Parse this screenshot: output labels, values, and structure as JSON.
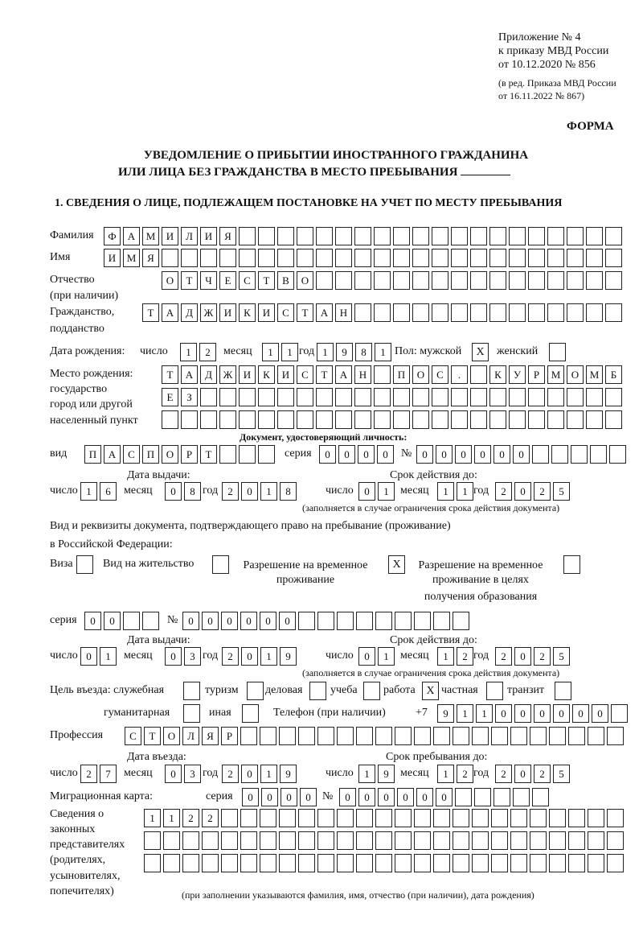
{
  "header": {
    "appendix": [
      "Приложение № 4",
      "к приказу МВД России",
      "от 10.12.2020 № 856"
    ],
    "revision": [
      "(в ред. Приказа МВД России",
      "от 16.11.2022 № 867)"
    ],
    "form_label": "ФОРМА",
    "title_line1": "УВЕДОМЛЕНИЕ О ПРИБЫТИИ ИНОСТРАННОГО ГРАЖДАНИНА",
    "title_line2": "ИЛИ ЛИЦА БЕЗ ГРАЖДАНСТВА В МЕСТО ПРЕБЫВАНИЯ",
    "section1": "1. СВЕДЕНИЯ О ЛИЦЕ, ПОДЛЕЖАЩЕМ ПОСТАНОВКЕ НА УЧЕТ ПО МЕСТУ ПРЕБЫВАНИЯ"
  },
  "person": {
    "surname_label": "Фамилия",
    "surname": "ФАМИЛИЯ",
    "name_label": "Имя",
    "name": "ИМЯ",
    "patronymic_label": "Отчество",
    "patronymic_note": "(при наличии)",
    "patronymic": "ОТЧЕСТВО",
    "citizenship_label": "Гражданство,",
    "citizenship_label2": "подданство",
    "citizenship": "ТАДЖИКИСТАН",
    "birth_label": "Дата рождения:",
    "day_label": "число",
    "month_label": "месяц",
    "year_label": "год",
    "birth_day": "12",
    "birth_month": "11",
    "birth_year": "1981",
    "sex_label": "Пол: мужской",
    "sex_female_label": "женский",
    "sex_male": "X",
    "sex_female": "",
    "birthplace_labels": [
      "Место рождения:",
      "государство",
      "город или другой",
      "населенный пункт"
    ],
    "birthplace": [
      "ТАДЖИКИСТАН ПОС. КУРМОМБ",
      "ЕЗ",
      ""
    ]
  },
  "id_document": {
    "heading": "Документ, удостоверяющий личность:",
    "kind_label": "вид",
    "kind": "ПАСПОРТ",
    "series_label": "серия",
    "series": "0000",
    "number_label": "№",
    "number": "000000",
    "issue_label": "Дата выдачи:",
    "issue_day": "16",
    "issue_month": "08",
    "issue_year": "2018",
    "valid_label": "Срок действия до:",
    "valid_day": "01",
    "valid_month": "11",
    "valid_year": "2025",
    "valid_note": "(заполняется в случае ограничения срока действия документа)"
  },
  "residence_document": {
    "heading1": "Вид и реквизиты документа, подтверждающего право на пребывание (проживание)",
    "heading2": "в Российской Федерации:",
    "visa_label": "Виза",
    "visa": "",
    "residence_permit_label": "Вид на жительство",
    "residence_permit": "",
    "temp_permit_label1": "Разрешение на временное",
    "temp_permit_label2": "проживание",
    "temp_permit": "X",
    "temp_edu_label1": "Разрешение на временное",
    "temp_edu_label2": "проживание в целях",
    "temp_edu_label3": "получения образования",
    "temp_edu": "",
    "series_label": "серия",
    "series": "00",
    "number_label": "№",
    "number": "000000",
    "issue_label": "Дата выдачи:",
    "issue_day": "01",
    "issue_month": "03",
    "issue_year": "2019",
    "valid_label": "Срок действия до:",
    "valid_day": "01",
    "valid_month": "12",
    "valid_year": "2025",
    "valid_note": "(заполняется в случае ограничения срока действия документа)"
  },
  "purpose": {
    "label": "Цель въезда: служебная",
    "official": "",
    "tourism_label": "туризм",
    "tourism": "",
    "business_label": "деловая",
    "business": "",
    "study_label": "учеба",
    "study": "",
    "work_label": "работа",
    "work": "X",
    "private_label": "частная",
    "private": "",
    "transit_label": "транзит",
    "transit": "",
    "humanitarian_label": "гуманитарная",
    "humanitarian": "",
    "other_label": "иная",
    "other": ""
  },
  "phone": {
    "label": "Телефон (при наличии)",
    "prefix": "+7",
    "value": "911000000"
  },
  "profession": {
    "label": "Профессия",
    "value": "СТОЛЯР"
  },
  "entry": {
    "entry_label": "Дата въезда:",
    "entry_day": "27",
    "entry_month": "03",
    "entry_year": "2019",
    "stay_label": "Срок пребывания до:",
    "stay_day": "19",
    "stay_month": "12",
    "stay_year": "2025"
  },
  "migration_card": {
    "label": "Миграционная карта:",
    "series_label": "серия",
    "series": "0000",
    "number_label": "№",
    "number": "000000"
  },
  "representatives": {
    "labels": [
      "Сведения о",
      "законных",
      "представителях",
      "(родителях,",
      "усыновителях,",
      "попечителях)"
    ],
    "rows": [
      "1122",
      "",
      ""
    ],
    "note": "(при заполнении указываются фамилия, имя, отчество (при наличии), дата рождения)"
  },
  "labels": {
    "day": "число",
    "month": "месяц",
    "year": "год"
  }
}
